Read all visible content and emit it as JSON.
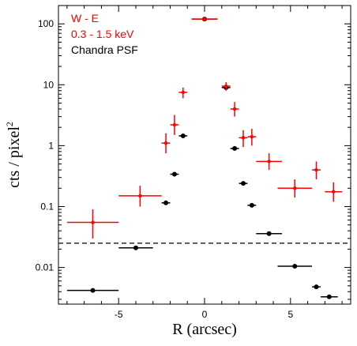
{
  "chart_data": {
    "type": "scatter",
    "xlabel": "R (arcsec)",
    "ylabel": "cts / pixel",
    "ylabel_superscript": "2",
    "xlim": [
      -8.5,
      8.5
    ],
    "ylim": [
      0.0025,
      200
    ],
    "yscale": "log",
    "x_ticks": [
      {
        "value": -5,
        "label": "-5"
      },
      {
        "value": 0,
        "label": "0"
      },
      {
        "value": 5,
        "label": "5"
      }
    ],
    "y_ticks": [
      {
        "value": 0.01,
        "label": "0.01"
      },
      {
        "value": 0.1,
        "label": "0.1"
      },
      {
        "value": 1,
        "label": "1"
      },
      {
        "value": 10,
        "label": "10"
      },
      {
        "value": 100,
        "label": "100"
      }
    ],
    "legend": [
      {
        "text": "W - E",
        "color": "#ff0000"
      },
      {
        "text": "0.3 - 1.5 keV",
        "color": "#ff0000"
      },
      {
        "text": "Chandra PSF",
        "color": "#000000"
      }
    ],
    "colors": {
      "data": "#ff0000",
      "psf": "#000000"
    },
    "series": [
      {
        "color": "#ff0000",
        "points": [
          {
            "x": -6.5,
            "y": 0.055,
            "xerr": 1.5,
            "ylo": 0.03,
            "yhi": 0.09
          },
          {
            "x": -3.75,
            "y": 0.15,
            "xerr": 1.25,
            "ylo": 0.1,
            "yhi": 0.22
          },
          {
            "x": -2.25,
            "y": 1.1,
            "xerr": 0.25,
            "ylo": 0.75,
            "yhi": 1.6
          },
          {
            "x": -1.75,
            "y": 2.2,
            "xerr": 0.25,
            "ylo": 1.5,
            "yhi": 3.2
          },
          {
            "x": -1.25,
            "y": 7.5,
            "xerr": 0.25,
            "ylo": 6.0,
            "yhi": 9.0
          },
          {
            "x": 0.0,
            "y": 120,
            "xerr": 0.75,
            "ylo": 110,
            "yhi": 130
          },
          {
            "x": 1.25,
            "y": 9.5,
            "xerr": 0.25,
            "ylo": 8.0,
            "yhi": 11.0
          },
          {
            "x": 1.75,
            "y": 4.0,
            "xerr": 0.25,
            "ylo": 3.0,
            "yhi": 5.2
          },
          {
            "x": 2.25,
            "y": 1.35,
            "xerr": 0.25,
            "ylo": 0.95,
            "yhi": 1.8
          },
          {
            "x": 2.75,
            "y": 1.4,
            "xerr": 0.25,
            "ylo": 1.0,
            "yhi": 1.9
          },
          {
            "x": 3.75,
            "y": 0.55,
            "xerr": 0.75,
            "ylo": 0.4,
            "yhi": 0.75
          },
          {
            "x": 5.25,
            "y": 0.2,
            "xerr": 1.0,
            "ylo": 0.14,
            "yhi": 0.28
          },
          {
            "x": 6.5,
            "y": 0.4,
            "xerr": 0.25,
            "ylo": 0.28,
            "yhi": 0.55
          },
          {
            "x": 7.5,
            "y": 0.175,
            "xerr": 0.5,
            "ylo": 0.12,
            "yhi": 0.25
          }
        ]
      },
      {
        "color": "#000000",
        "points": [
          {
            "x": -6.5,
            "y": 0.0042,
            "xerr": 1.5
          },
          {
            "x": -4.0,
            "y": 0.021,
            "xerr": 1.0
          },
          {
            "x": -2.25,
            "y": 0.115,
            "xerr": 0.25
          },
          {
            "x": -1.75,
            "y": 0.34,
            "xerr": 0.25
          },
          {
            "x": -1.25,
            "y": 1.45,
            "xerr": 0.25
          },
          {
            "x": 0.0,
            "y": 120,
            "xerr": 0.75
          },
          {
            "x": 1.25,
            "y": 9.0,
            "xerr": 0.25
          },
          {
            "x": 1.75,
            "y": 0.9,
            "xerr": 0.25
          },
          {
            "x": 2.25,
            "y": 0.24,
            "xerr": 0.25
          },
          {
            "x": 2.75,
            "y": 0.105,
            "xerr": 0.25
          },
          {
            "x": 3.75,
            "y": 0.036,
            "xerr": 0.75
          },
          {
            "x": 5.25,
            "y": 0.0105,
            "xerr": 1.0
          },
          {
            "x": 6.5,
            "y": 0.0048,
            "xerr": 0.25
          },
          {
            "x": 7.25,
            "y": 0.0033,
            "xerr": 0.5
          }
        ]
      }
    ],
    "reference_line": {
      "y": 0.025,
      "style": "dashed",
      "color": "#000000"
    }
  }
}
